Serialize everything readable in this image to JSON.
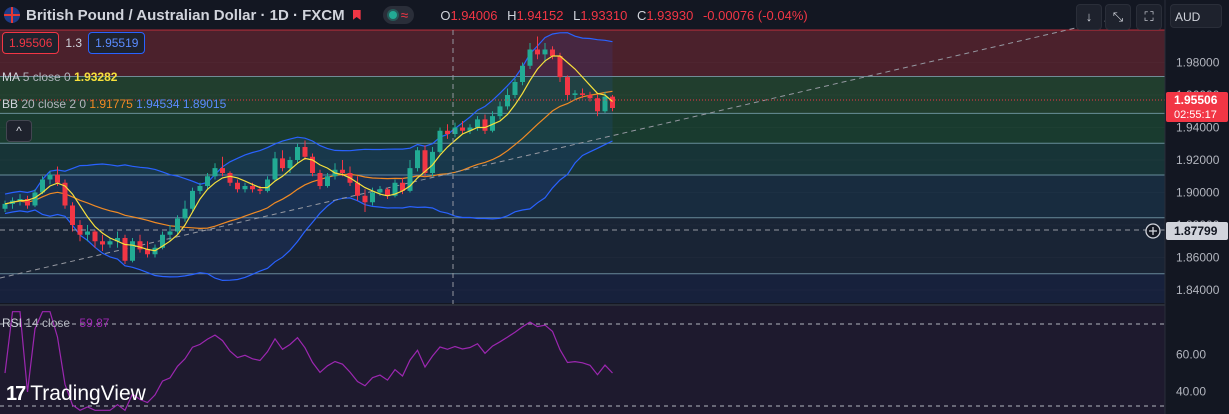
{
  "header": {
    "symbol_title": "British Pound / Australian Dollar · 1D · FXCM",
    "pill_symbol": "≈",
    "ohlc": [
      {
        "key": "O",
        "value": "1.94006"
      },
      {
        "key": "H",
        "value": "1.94152"
      },
      {
        "key": "L",
        "value": "1.93310"
      },
      {
        "key": "C",
        "value": "1.93930"
      }
    ],
    "change": "-0.00076 (-0.04%)"
  },
  "trade": {
    "sell": "1.95506",
    "spread": "1.3",
    "buy": "1.95519"
  },
  "indicators": {
    "ma": {
      "label": "MA",
      "params": "5 close 0",
      "value": "1.93282"
    },
    "bb": {
      "label": "BB",
      "params": "20 close 2 0",
      "basis": "1.91775",
      "upper": "1.94534",
      "lower": "1.89015"
    },
    "rsi": {
      "label": "RSI",
      "params": "14 close",
      "value": "59.87"
    }
  },
  "toolbar": {
    "currency": "AUD",
    "collapse_icon": "chevron-up-icon"
  },
  "branding": {
    "name": "TradingView"
  },
  "colors": {
    "up": "#22ab94",
    "down": "#f23645",
    "ma": "#f7e03c",
    "bb_basis": "#f08a24",
    "bb_band": "#2962ff",
    "rsi": "#9c27b0"
  },
  "chart_data": {
    "type": "candlestick",
    "y_axis_ticks": [
      "1.98000",
      "1.96000",
      "1.94000",
      "1.92000",
      "1.90000",
      "1.88000",
      "1.86000",
      "1.84000"
    ],
    "ylim": [
      1.832,
      2.0
    ],
    "last_price_label": "1.95506",
    "countdown_label": "02:55:17",
    "crosshair_price_label": "1.87799",
    "rsi_axis_ticks": [
      "60.00",
      "40.00"
    ],
    "rsi_ylim": [
      28,
      85
    ],
    "zones": [
      {
        "from": 1.9714,
        "to": 2.0,
        "color": "#7a2a35"
      },
      {
        "from": 1.9487,
        "to": 1.9714,
        "color": "#2e5e38"
      },
      {
        "from": 1.9303,
        "to": 1.9487,
        "color": "#1f5a3a"
      },
      {
        "from": 1.9108,
        "to": 1.9303,
        "color": "#1c4d48"
      },
      {
        "from": 1.8845,
        "to": 1.9108,
        "color": "#1d3e58"
      },
      {
        "from": 1.85,
        "to": 1.8845,
        "color": "#1f3045"
      },
      {
        "from": 1.832,
        "to": 1.85,
        "color": "#1b2a52"
      }
    ],
    "candles": [
      [
        1.89,
        1.895,
        1.888,
        1.893
      ],
      [
        1.893,
        1.897,
        1.89,
        1.895
      ],
      [
        1.895,
        1.899,
        1.892,
        1.896
      ],
      [
        1.896,
        1.898,
        1.89,
        1.892
      ],
      [
        1.892,
        1.902,
        1.891,
        1.9
      ],
      [
        1.9,
        1.91,
        1.899,
        1.908
      ],
      [
        1.908,
        1.913,
        1.905,
        1.911
      ],
      [
        1.911,
        1.916,
        1.904,
        1.906
      ],
      [
        1.906,
        1.908,
        1.89,
        1.892
      ],
      [
        1.892,
        1.894,
        1.876,
        1.88
      ],
      [
        1.88,
        1.883,
        1.87,
        1.874
      ],
      [
        1.874,
        1.88,
        1.87,
        1.876
      ],
      [
        1.876,
        1.877,
        1.866,
        1.87
      ],
      [
        1.87,
        1.874,
        1.864,
        1.868
      ],
      [
        1.868,
        1.872,
        1.866,
        1.87
      ],
      [
        1.87,
        1.876,
        1.866,
        1.872
      ],
      [
        1.872,
        1.874,
        1.856,
        1.858
      ],
      [
        1.858,
        1.872,
        1.857,
        1.87
      ],
      [
        1.87,
        1.874,
        1.863,
        1.865
      ],
      [
        1.865,
        1.87,
        1.86,
        1.862
      ],
      [
        1.862,
        1.868,
        1.86,
        1.866
      ],
      [
        1.866,
        1.876,
        1.865,
        1.874
      ],
      [
        1.874,
        1.88,
        1.87,
        1.876
      ],
      [
        1.876,
        1.886,
        1.874,
        1.884
      ],
      [
        1.884,
        1.895,
        1.882,
        1.89
      ],
      [
        1.89,
        1.903,
        1.888,
        1.901
      ],
      [
        1.901,
        1.906,
        1.899,
        1.904
      ],
      [
        1.904,
        1.912,
        1.902,
        1.91
      ],
      [
        1.91,
        1.918,
        1.908,
        1.915
      ],
      [
        1.915,
        1.922,
        1.91,
        1.912
      ],
      [
        1.912,
        1.913,
        1.904,
        1.906
      ],
      [
        1.906,
        1.908,
        1.9,
        1.902
      ],
      [
        1.902,
        1.906,
        1.9,
        1.904
      ],
      [
        1.904,
        1.906,
        1.9,
        1.902
      ],
      [
        1.902,
        1.904,
        1.899,
        1.901
      ],
      [
        1.901,
        1.91,
        1.9,
        1.908
      ],
      [
        1.908,
        1.925,
        1.907,
        1.921
      ],
      [
        1.921,
        1.926,
        1.913,
        1.915
      ],
      [
        1.915,
        1.922,
        1.912,
        1.92
      ],
      [
        1.92,
        1.93,
        1.918,
        1.928
      ],
      [
        1.928,
        1.932,
        1.92,
        1.922
      ],
      [
        1.922,
        1.924,
        1.91,
        1.912
      ],
      [
        1.912,
        1.914,
        1.902,
        1.904
      ],
      [
        1.904,
        1.912,
        1.903,
        1.91
      ],
      [
        1.91,
        1.918,
        1.908,
        1.914
      ],
      [
        1.914,
        1.92,
        1.91,
        1.912
      ],
      [
        1.912,
        1.916,
        1.904,
        1.906
      ],
      [
        1.906,
        1.91,
        1.895,
        1.898
      ],
      [
        1.898,
        1.902,
        1.888,
        1.894
      ],
      [
        1.894,
        1.903,
        1.892,
        1.9
      ],
      [
        1.9,
        1.904,
        1.898,
        1.902
      ],
      [
        1.902,
        1.903,
        1.896,
        1.898
      ],
      [
        1.898,
        1.908,
        1.897,
        1.906
      ],
      [
        1.906,
        1.909,
        1.899,
        1.901
      ],
      [
        1.901,
        1.92,
        1.9,
        1.915
      ],
      [
        1.915,
        1.928,
        1.913,
        1.926
      ],
      [
        1.926,
        1.929,
        1.91,
        1.912
      ],
      [
        1.912,
        1.928,
        1.91,
        1.925
      ],
      [
        1.925,
        1.94,
        1.924,
        1.938
      ],
      [
        1.938,
        1.942,
        1.933,
        1.936
      ],
      [
        1.936,
        1.943,
        1.934,
        1.94
      ],
      [
        1.94,
        1.944,
        1.936,
        1.938
      ],
      [
        1.938,
        1.942,
        1.936,
        1.94
      ],
      [
        1.94,
        1.947,
        1.938,
        1.945
      ],
      [
        1.945,
        1.948,
        1.936,
        1.938
      ],
      [
        1.938,
        1.95,
        1.937,
        1.947
      ],
      [
        1.947,
        1.956,
        1.945,
        1.953
      ],
      [
        1.953,
        1.964,
        1.951,
        1.96
      ],
      [
        1.96,
        1.97,
        1.958,
        1.968
      ],
      [
        1.968,
        1.98,
        1.966,
        1.978
      ],
      [
        1.978,
        1.992,
        1.976,
        1.988
      ],
      [
        1.988,
        1.996,
        1.982,
        1.985
      ],
      [
        1.985,
        1.992,
        1.98,
        1.988
      ],
      [
        1.988,
        1.99,
        1.982,
        1.984
      ],
      [
        1.984,
        1.986,
        1.968,
        1.971
      ],
      [
        1.971,
        1.972,
        1.957,
        1.96
      ],
      [
        1.96,
        1.963,
        1.957,
        1.961
      ],
      [
        1.961,
        1.964,
        1.958,
        1.96
      ],
      [
        1.96,
        1.962,
        1.956,
        1.958
      ],
      [
        1.958,
        1.961,
        1.947,
        1.95
      ],
      [
        1.95,
        1.962,
        1.949,
        1.959
      ],
      [
        1.959,
        1.96,
        1.95,
        1.952
      ]
    ],
    "ma5": [
      1.893,
      1.894,
      1.895,
      1.8952,
      1.8968,
      1.9,
      1.904,
      1.9058,
      1.904,
      1.899,
      1.892,
      1.885,
      1.879,
      1.875,
      1.872,
      1.87,
      1.868,
      1.8676,
      1.8664,
      1.865,
      1.8642,
      1.867,
      1.87,
      1.874,
      1.88,
      1.888,
      1.896,
      1.902,
      1.906,
      1.909,
      1.91,
      1.909,
      1.907,
      1.905,
      1.903,
      1.903,
      1.907,
      1.91,
      1.914,
      1.918,
      1.921,
      1.92,
      1.917,
      1.915,
      1.912,
      1.911,
      1.909,
      1.906,
      1.903,
      1.901,
      1.899,
      1.898,
      1.899,
      1.901,
      1.904,
      1.909,
      1.913,
      1.917,
      1.923,
      1.928,
      1.932,
      1.936,
      1.938,
      1.94,
      1.94,
      1.942,
      1.944,
      1.948,
      1.954,
      1.961,
      1.969,
      1.976,
      1.981,
      1.984,
      1.984,
      1.98,
      1.976,
      1.971,
      1.966,
      1.961,
      1.96,
      1.956
    ]
  }
}
